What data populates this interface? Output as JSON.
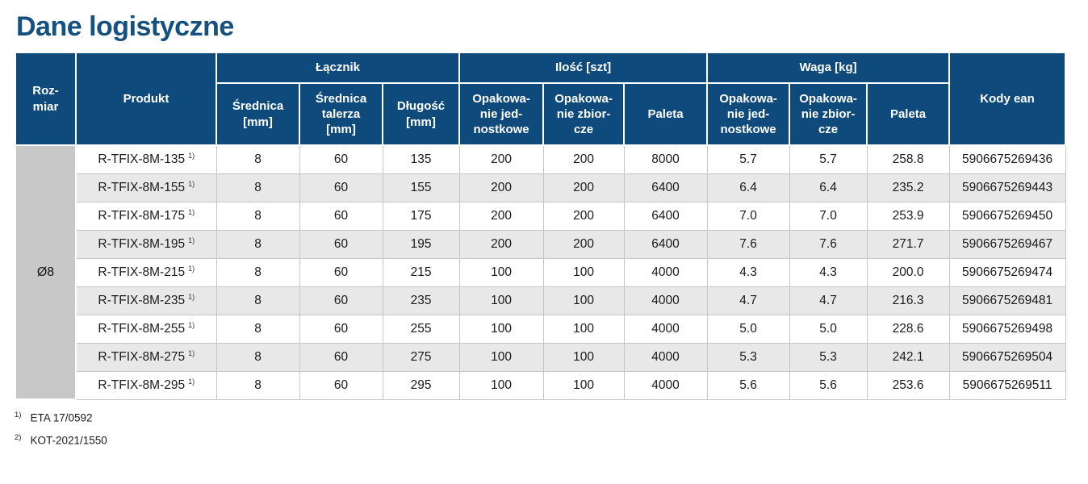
{
  "page": {
    "title": "Dane logistyczne"
  },
  "table": {
    "headers": {
      "rozmiar": "Roz-\nmiar",
      "produkt": "Produkt",
      "lacznik_group": "Łącznik",
      "ilosc_group": "Ilość [szt]",
      "waga_group": "Waga [kg]",
      "kody_ean": "Kody ean",
      "srednica": "Średnica\n[mm]",
      "srednica_talerza": "Średnica\ntalerza\n[mm]",
      "dlugosc": "Długość\n[mm]",
      "opak_jednostkowe": "Opakowa-\nnie jed-\nnostkowe",
      "opak_zbiorcze": "Opakowa-\nnie zbior-\ncze",
      "paleta": "Paleta"
    },
    "size_label": "Ø8",
    "rows": [
      {
        "produkt": "R-TFIX-8M-135",
        "sup": "1)",
        "srednica": "8",
        "talerz": "60",
        "dlugosc": "135",
        "il_jedn": "200",
        "il_zbior": "200",
        "il_paleta": "8000",
        "w_jedn": "5.7",
        "w_zbior": "5.7",
        "w_paleta": "258.8",
        "ean": "5906675269436"
      },
      {
        "produkt": "R-TFIX-8M-155",
        "sup": "1)",
        "srednica": "8",
        "talerz": "60",
        "dlugosc": "155",
        "il_jedn": "200",
        "il_zbior": "200",
        "il_paleta": "6400",
        "w_jedn": "6.4",
        "w_zbior": "6.4",
        "w_paleta": "235.2",
        "ean": "5906675269443"
      },
      {
        "produkt": "R-TFIX-8M-175",
        "sup": "1)",
        "srednica": "8",
        "talerz": "60",
        "dlugosc": "175",
        "il_jedn": "200",
        "il_zbior": "200",
        "il_paleta": "6400",
        "w_jedn": "7.0",
        "w_zbior": "7.0",
        "w_paleta": "253.9",
        "ean": "5906675269450"
      },
      {
        "produkt": "R-TFIX-8M-195",
        "sup": "1)",
        "srednica": "8",
        "talerz": "60",
        "dlugosc": "195",
        "il_jedn": "200",
        "il_zbior": "200",
        "il_paleta": "6400",
        "w_jedn": "7.6",
        "w_zbior": "7.6",
        "w_paleta": "271.7",
        "ean": "5906675269467"
      },
      {
        "produkt": "R-TFIX-8M-215",
        "sup": "1)",
        "srednica": "8",
        "talerz": "60",
        "dlugosc": "215",
        "il_jedn": "100",
        "il_zbior": "100",
        "il_paleta": "4000",
        "w_jedn": "4.3",
        "w_zbior": "4.3",
        "w_paleta": "200.0",
        "ean": "5906675269474"
      },
      {
        "produkt": "R-TFIX-8M-235",
        "sup": "1)",
        "srednica": "8",
        "talerz": "60",
        "dlugosc": "235",
        "il_jedn": "100",
        "il_zbior": "100",
        "il_paleta": "4000",
        "w_jedn": "4.7",
        "w_zbior": "4.7",
        "w_paleta": "216.3",
        "ean": "5906675269481"
      },
      {
        "produkt": "R-TFIX-8M-255",
        "sup": "1)",
        "srednica": "8",
        "talerz": "60",
        "dlugosc": "255",
        "il_jedn": "100",
        "il_zbior": "100",
        "il_paleta": "4000",
        "w_jedn": "5.0",
        "w_zbior": "5.0",
        "w_paleta": "228.6",
        "ean": "5906675269498"
      },
      {
        "produkt": "R-TFIX-8M-275",
        "sup": "1)",
        "srednica": "8",
        "talerz": "60",
        "dlugosc": "275",
        "il_jedn": "100",
        "il_zbior": "100",
        "il_paleta": "4000",
        "w_jedn": "5.3",
        "w_zbior": "5.3",
        "w_paleta": "242.1",
        "ean": "5906675269504"
      },
      {
        "produkt": "R-TFIX-8M-295",
        "sup": "1)",
        "srednica": "8",
        "talerz": "60",
        "dlugosc": "295",
        "il_jedn": "100",
        "il_zbior": "100",
        "il_paleta": "4000",
        "w_jedn": "5.6",
        "w_zbior": "5.6",
        "w_paleta": "253.6",
        "ean": "5906675269511"
      }
    ]
  },
  "footnotes": [
    {
      "sup": "1)",
      "text": "ETA 17/0592"
    },
    {
      "sup": "2)",
      "text": "KOT-2021/1550"
    }
  ],
  "colors": {
    "header_bg": "#0e4a7b",
    "title_text": "#15517f",
    "size_cell_bg": "#c8c8c8",
    "alt_row_bg": "#e8e8e8"
  }
}
